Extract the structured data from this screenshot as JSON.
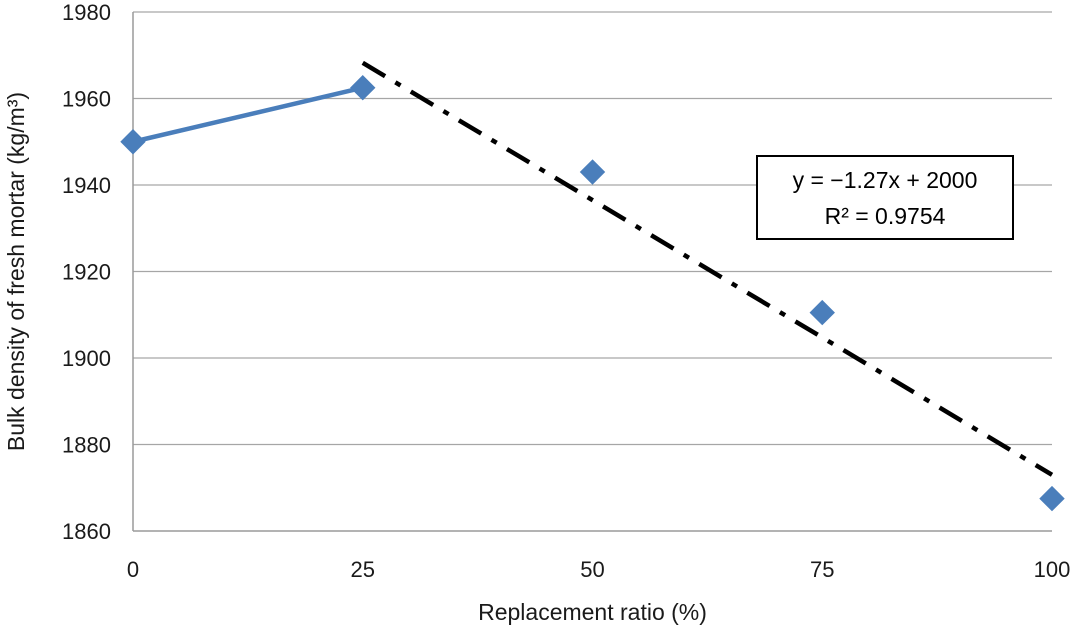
{
  "chart_data": {
    "type": "scatter",
    "xlabel": "Replacement ratio (%)",
    "ylabel": "Bulk density of fresh mortar (kg/m³)",
    "xlim": [
      0,
      100
    ],
    "ylim": [
      1860,
      1980
    ],
    "x_ticks": [
      0,
      25,
      50,
      75,
      100
    ],
    "y_ticks": [
      1860,
      1880,
      1900,
      1920,
      1940,
      1960,
      1980
    ],
    "grid": "horizontal",
    "series": [
      {
        "marker": "diamond",
        "color": "#4a7ebb",
        "x": [
          0,
          25,
          50,
          75,
          100
        ],
        "y": [
          1950,
          1962.5,
          1943,
          1910.5,
          1867.5
        ]
      }
    ],
    "connector": {
      "style": "solid",
      "color": "#4a7ebb",
      "x": [
        0,
        25
      ],
      "y": [
        1950,
        1962.5
      ]
    },
    "trendline": {
      "style": "dash-dot",
      "color": "#000000",
      "slope": -1.27,
      "intercept": 2000,
      "x_range": [
        25,
        100
      ]
    },
    "annotation": {
      "equation": "y = −1.27x + 2000",
      "r_squared": "R² = 0.9754"
    }
  }
}
